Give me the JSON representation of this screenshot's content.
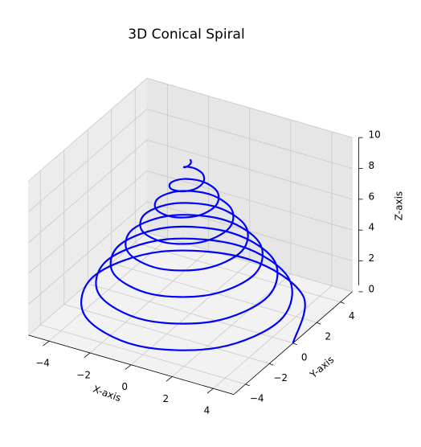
{
  "chart_data": {
    "type": "line3d",
    "title": "3D Conical Spiral",
    "xlabel": "X-axis",
    "ylabel": "Y-axis",
    "zlabel": "Z-axis",
    "color": "#0000ff",
    "grid": true,
    "xlim": [
      -5,
      5
    ],
    "ylim": [
      -5,
      5
    ],
    "zlim": [
      0,
      10
    ],
    "xticks": [
      {
        "value": -4,
        "label": "−4"
      },
      {
        "value": -2,
        "label": "−2"
      },
      0,
      2,
      4
    ],
    "yticks": [
      {
        "value": -4,
        "label": "−4"
      },
      {
        "value": -2,
        "label": "−2"
      },
      0,
      2,
      4
    ],
    "zticks": [
      0,
      2,
      4,
      6,
      8,
      10
    ],
    "x": [
      5,
      3.48,
      0,
      -3.37,
      -4.69,
      -3.26,
      0,
      3.15,
      4.38,
      3.04,
      0,
      -2.93,
      -4.06,
      -2.82,
      0,
      2.71,
      3.75,
      2.6,
      0,
      -2.49,
      -3.44,
      -2.38,
      0,
      2.26,
      3.13,
      2.15,
      0,
      -2.04,
      -2.81,
      -1.93,
      0,
      1.82,
      2.5,
      1.71,
      0,
      -1.6,
      -2.19,
      -1.49,
      0,
      1.38,
      1.88,
      1.27,
      0,
      -1.16,
      -1.56,
      -1.05,
      0,
      0.94,
      1.25,
      0.83,
      0,
      -0.72,
      -0.94,
      -0.61,
      0,
      0.5,
      0.63,
      0.39,
      0,
      -0.28,
      -0.31,
      -0.17,
      0,
      0.06,
      0
    ],
    "y": [
      0,
      3.48,
      4.84,
      3.37,
      0,
      -3.26,
      -4.53,
      -3.15,
      0,
      3.04,
      4.22,
      2.93,
      0,
      -2.82,
      -3.91,
      -2.71,
      0,
      2.6,
      3.59,
      2.49,
      0,
      -2.38,
      -3.28,
      -2.26,
      0,
      2.15,
      2.97,
      2.04,
      0,
      -1.93,
      -2.66,
      -1.82,
      0,
      1.71,
      2.34,
      1.6,
      0,
      -1.49,
      -2.03,
      -1.38,
      0,
      1.27,
      1.72,
      1.16,
      0,
      -1.05,
      -1.41,
      -0.94,
      0,
      0.83,
      1.09,
      0.72,
      0,
      -0.61,
      -0.78,
      -0.5,
      0,
      0.39,
      0.47,
      0.28,
      0,
      -0.17,
      -0.16,
      -0.06,
      0
    ],
    "z": [
      0,
      0.16,
      0.31,
      0.47,
      0.63,
      0.78,
      0.94,
      1.09,
      1.25,
      1.41,
      1.56,
      1.72,
      1.88,
      2.03,
      2.19,
      2.34,
      2.5,
      2.66,
      2.81,
      2.97,
      3.13,
      3.28,
      3.44,
      3.59,
      3.75,
      3.91,
      4.06,
      4.22,
      4.38,
      4.53,
      4.69,
      4.84,
      5,
      5.16,
      5.31,
      5.47,
      5.63,
      5.78,
      5.94,
      6.09,
      6.25,
      6.41,
      6.56,
      6.72,
      6.88,
      7.03,
      7.19,
      7.34,
      7.5,
      7.66,
      7.81,
      7.97,
      8.13,
      8.28,
      8.44,
      8.59,
      8.75,
      8.91,
      9.06,
      9.22,
      9.38,
      9.53,
      9.69,
      9.84,
      10
    ]
  }
}
